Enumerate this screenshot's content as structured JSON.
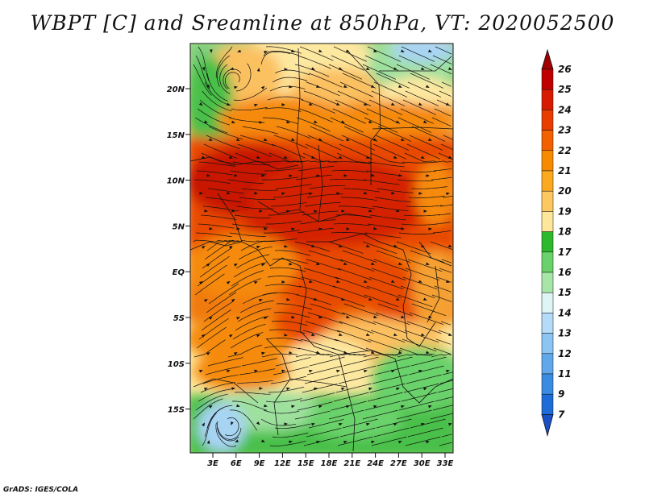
{
  "title": "WBPT [C] and Sreamline at 850hPa, VT: 2020052500",
  "credit": "GrADS: IGES/COLA",
  "map": {
    "lat_ticks": [
      "20N",
      "15N",
      "10N",
      "5N",
      "EQ",
      "5S",
      "10S",
      "15S"
    ],
    "lon_ticks": [
      "3E",
      "6E",
      "9E",
      "12E",
      "15E",
      "18E",
      "21E",
      "24E",
      "27E",
      "30E",
      "33E"
    ]
  },
  "colorbar": {
    "labels": [
      "26",
      "25",
      "24",
      "23",
      "22",
      "21",
      "20",
      "19",
      "18",
      "17",
      "16",
      "15",
      "14",
      "13",
      "12",
      "11",
      "9",
      "7"
    ],
    "colors": [
      "#c00000",
      "#d81b00",
      "#e83c00",
      "#f26000",
      "#f88a00",
      "#fbaa20",
      "#fdc860",
      "#fee69a",
      "#2db82d",
      "#6ad26a",
      "#a8e6a8",
      "#dff5f5",
      "#b4dcf8",
      "#8cc4f2",
      "#60a8ea",
      "#3a8ce2",
      "#1e6cd8"
    ],
    "top_arrow_color": "#a00000",
    "bottom_arrow_color": "#1850c8"
  },
  "palette": {
    "hot": "#d42000",
    "warm": "#e84a00",
    "orange": "#f58a10",
    "tan": "#fbc060",
    "pale": "#fde8a0",
    "green": "#48c048",
    "lightgreen": "#9ee09e",
    "blue": "#a8d4f4"
  }
}
